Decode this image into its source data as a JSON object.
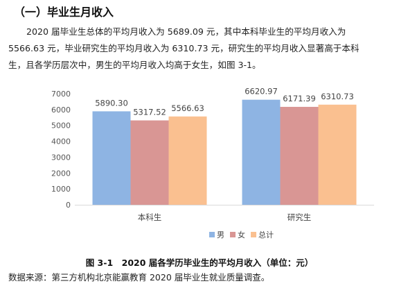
{
  "section_title": "（一）毕业生月收入",
  "paragraph": {
    "line1": "2020 届毕业生总体的平均月收入为 5689.09 元，其中本科毕业生的平均月收入为",
    "line2": "5566.63 元，毕业研究生的平均月收入为 6310.73 元，研究生的平均月收入显著高于本科",
    "line3": "生，且各学历层次中，男生的平均月收入均高于女生，如图 3-1。"
  },
  "chart_data": {
    "type": "bar",
    "categories": [
      "本科生",
      "研究生"
    ],
    "series": [
      {
        "name": "男",
        "color": "#8eb4e3",
        "values": [
          5890.3,
          6620.97
        ],
        "labels": [
          "5890.30",
          "6620.97"
        ]
      },
      {
        "name": "女",
        "color": "#d99694",
        "values": [
          5317.52,
          6171.39
        ],
        "labels": [
          "5317.52",
          "6171.39"
        ]
      },
      {
        "name": "总计",
        "color": "#fac090",
        "values": [
          5566.63,
          6310.73
        ],
        "labels": [
          "5566.63",
          "6310.73"
        ]
      }
    ],
    "yticks": [
      "0",
      "1000",
      "2000",
      "3000",
      "4000",
      "5000",
      "6000",
      "7000"
    ],
    "ylim": [
      0,
      7000
    ],
    "grid": false,
    "legend_position": "bottom-right"
  },
  "caption": "图 3-1　2020 届各学历毕业生的平均月收入（单位：元）",
  "source": "数据来源：第三方机构北京能赢教育 2020 届毕业生就业质量调查。"
}
